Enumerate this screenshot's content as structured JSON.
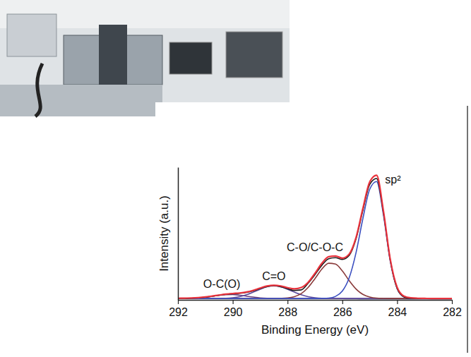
{
  "chart_data": {
    "type": "line",
    "xlabel": "Binding Energy (eV)",
    "ylabel": "Intensity (a.u.)",
    "x": [
      292,
      291.75,
      291.5,
      291.25,
      291,
      290.75,
      290.5,
      290.25,
      290,
      289.75,
      289.5,
      289.25,
      289,
      288.75,
      288.5,
      288.25,
      288,
      287.75,
      287.5,
      287.25,
      287,
      286.75,
      286.5,
      286.25,
      286,
      285.75,
      285.5,
      285.25,
      285,
      284.75,
      284.5,
      284.25,
      284,
      283.75,
      283.5,
      283.25,
      283,
      282.75,
      282.5,
      282.25,
      282
    ],
    "series": [
      {
        "color": "#7f86b8",
        "values": [
          0.9,
          0.9,
          0.9,
          0.9,
          0.9,
          0.9,
          0.9,
          0.9,
          0.9,
          0.9,
          0.9,
          0.9,
          0.9,
          0.9,
          0.9,
          0.9,
          0.9,
          0.9,
          0.9,
          0.9,
          0.9,
          0.9,
          0.9,
          0.9,
          0.9,
          0.8,
          0.8,
          0.7,
          0.7,
          0.7,
          0.7,
          0.7,
          0.7,
          0.7,
          0.7,
          0.7,
          0.7,
          0.7,
          0.7,
          0.7,
          0.7
        ]
      },
      {
        "name": "O-C(O)",
        "color": "#6a3f7a",
        "values": [
          1.0,
          1.1,
          1.2,
          1.5,
          2.0,
          2.7,
          3.4,
          3.9,
          4.0,
          3.5,
          2.8,
          2.1,
          1.5,
          1.2,
          1.1,
          1.0,
          1.0,
          1.0,
          1.0,
          1.0,
          1.0,
          1.0,
          1.0,
          1.0,
          1.0,
          1.0,
          1.0,
          1.0,
          1.0,
          1.0,
          1.0,
          1.0,
          1.0,
          1.0,
          1.0,
          1.0,
          1.0,
          1.0,
          1.0,
          1.0,
          1.0
        ]
      },
      {
        "name": "C=O",
        "color": "#5d4c9c",
        "values": [
          1.0,
          1.0,
          1.0,
          1.0,
          1.0,
          1.0,
          1.1,
          1.2,
          1.6,
          2.4,
          3.8,
          5.8,
          8.0,
          9.8,
          10.5,
          9.8,
          8.0,
          5.8,
          3.8,
          2.4,
          1.6,
          1.2,
          1.1,
          1.0,
          1.0,
          1.0,
          1.0,
          1.0,
          1.0,
          1.0,
          1.0,
          1.0,
          1.0,
          1.0,
          1.0,
          1.0,
          1.0,
          1.0,
          1.0,
          1.0,
          1.0
        ]
      },
      {
        "name": "C-O/C-O-C",
        "color": "#8a3b3b",
        "values": [
          1.0,
          1.0,
          1.0,
          1.0,
          1.0,
          1.0,
          1.0,
          1.0,
          1.0,
          1.0,
          1.0,
          1.0,
          1.0,
          1.0,
          1.0,
          1.1,
          1.4,
          2.4,
          4.7,
          9.3,
          16.0,
          23.1,
          27.6,
          27.0,
          21.8,
          14.5,
          8.2,
          4.1,
          2.1,
          1.3,
          1.1,
          1.0,
          1.0,
          1.0,
          1.0,
          1.0,
          1.0,
          1.0,
          1.0,
          1.0,
          1.0
        ]
      },
      {
        "name": "sp²",
        "color": "#3b4fc0",
        "values": [
          1.0,
          1.0,
          1.0,
          1.0,
          1.0,
          1.0,
          1.0,
          1.0,
          1.0,
          1.0,
          1.0,
          1.0,
          1.0,
          1.0,
          1.0,
          1.0,
          1.0,
          1.0,
          1.0,
          1.0,
          1.0,
          1.1,
          1.3,
          2.6,
          6.6,
          16.6,
          35.6,
          61.3,
          83.4,
          89.2,
          64.0,
          28.9,
          8.6,
          2.3,
          1.1,
          1.0,
          1.0,
          1.0,
          1.0,
          1.0,
          1.0
        ]
      },
      {
        "color": "#1a1a1a",
        "values": [
          1.0,
          1.1,
          1.2,
          1.5,
          2.0,
          2.7,
          3.5,
          4.1,
          4.6,
          4.9,
          5.6,
          6.8,
          8.5,
          10.0,
          10.6,
          9.9,
          8.4,
          7.1,
          7.5,
          12.5,
          19.0,
          26.0,
          31.0,
          31.8,
          30.5,
          33.5,
          46.0,
          67.5,
          87.0,
          91.5,
          65.5,
          29.8,
          8.6,
          2.3,
          1.1,
          1.0,
          1.0,
          1.0,
          1.0,
          1.0,
          1.0
        ]
      },
      {
        "color": "#e8323c",
        "values": [
          1.2,
          1.3,
          1.4,
          1.7,
          2.2,
          2.9,
          3.6,
          4.3,
          4.8,
          5.2,
          5.9,
          7.2,
          8.9,
          10.4,
          11.0,
          10.5,
          9.2,
          8.3,
          9.3,
          13.2,
          20.0,
          27.5,
          32.5,
          33.0,
          31.5,
          34.5,
          47.0,
          69.0,
          89.0,
          94.0,
          67.0,
          30.5,
          9.5,
          2.8,
          1.5,
          1.2,
          1.1,
          1.0,
          1.0,
          1.0,
          1.0
        ]
      }
    ],
    "xlim": [
      292,
      282
    ],
    "xticks": [
      292,
      290,
      288,
      286,
      284,
      282
    ],
    "ylim": [
      0,
      100
    ],
    "yticks": [],
    "tick_labels": "x"
  }
}
